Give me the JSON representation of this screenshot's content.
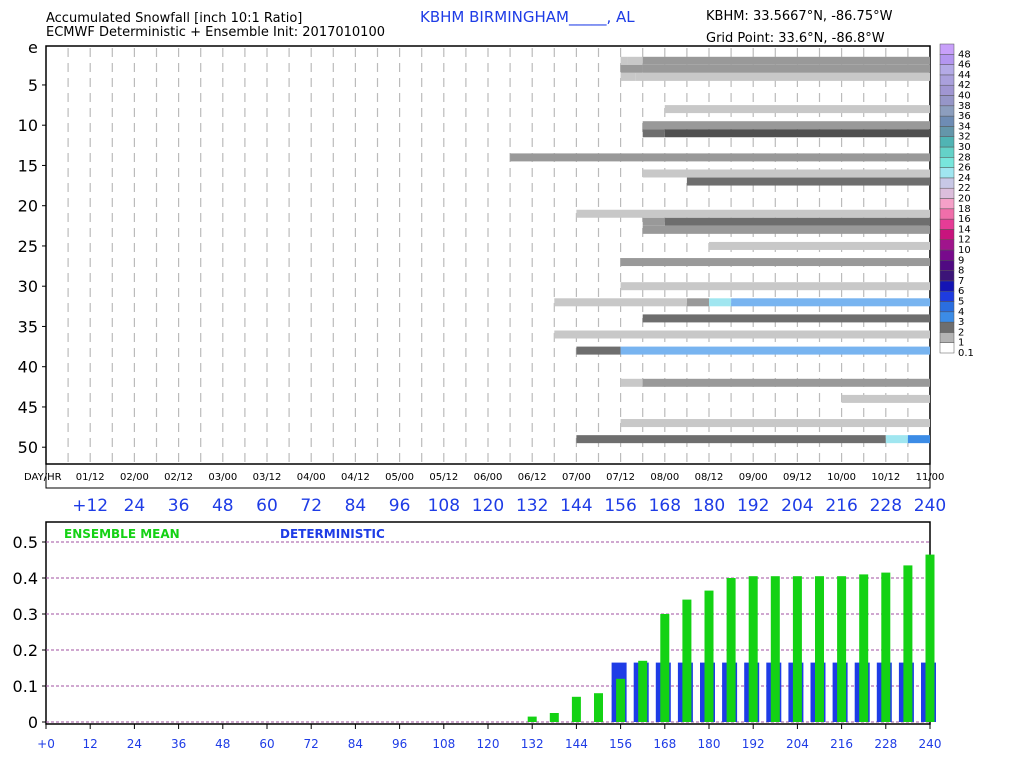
{
  "header": {
    "title_line1": "Accumulated Snowfall [inch 10:1 Ratio]",
    "title_line2": "ECMWF Deterministic + Ensemble Init: 2017010100",
    "station": "KBHM BIRMINGHAM_____, AL",
    "station_coords": "KBHM: 33.5667°N, -86.75°W",
    "grid_point": "Grid Point: 33.6°N, -86.8°W"
  },
  "chart_data": [
    {
      "type": "heatmap",
      "ylabel_top": "e",
      "y_ticks": [
        5,
        10,
        15,
        20,
        25,
        30,
        35,
        40,
        45,
        50
      ],
      "y_range": [
        0,
        52
      ],
      "x_range": [
        0,
        240
      ],
      "day_hr_label": "DAY/HR",
      "day_hr_ticks": [
        "01/12",
        "02/00",
        "02/12",
        "03/00",
        "03/12",
        "04/00",
        "04/12",
        "05/00",
        "05/12",
        "06/00",
        "06/12",
        "07/00",
        "07/12",
        "08/00",
        "08/12",
        "09/00",
        "09/12",
        "10/00",
        "10/12",
        "11/00"
      ],
      "hour_ticks": [
        "+12",
        "24",
        "36",
        "48",
        "60",
        "72",
        "84",
        "96",
        "108",
        "120",
        "132",
        "144",
        "156",
        "168",
        "180",
        "192",
        "204",
        "216",
        "228",
        "240"
      ],
      "grid": "vertical dashed",
      "legend": {
        "placement": "right",
        "levels": [
          "0.1",
          "1",
          "2",
          "3",
          "4",
          "5",
          "6",
          "7",
          "8",
          "9",
          "10",
          "12",
          "14",
          "16",
          "18",
          "20",
          "22",
          "24",
          "26",
          "28",
          "30",
          "32",
          "34",
          "36",
          "38",
          "40",
          "42",
          "44",
          "46",
          "48"
        ],
        "colors": [
          "#ffffff",
          "#b4b4b4",
          "#6e6e6e",
          "#3c8ce6",
          "#2a6ee0",
          "#1e3ce0",
          "#1414b4",
          "#3c1478",
          "#500a82",
          "#780a8c",
          "#a0148c",
          "#c8147d",
          "#e63c96",
          "#f06eaa",
          "#f5a0c8",
          "#dcbedc",
          "#c8c8e6",
          "#a0e6f0",
          "#78e6dc",
          "#64d2c8",
          "#50b4b4",
          "#6496aa",
          "#6e8cb4",
          "#8c9ebe",
          "#9696c8",
          "#a096d2",
          "#aaa0dc",
          "#b4aae6",
          "#b496f0",
          "#c8a0fa"
        ]
      },
      "series": [
        {
          "member": 2,
          "segments": [
            [
              156,
              158,
              "#c8c8c8"
            ],
            [
              158,
              162,
              "#c8c8c8"
            ],
            [
              162,
              240,
              "#999999"
            ]
          ]
        },
        {
          "member": 3,
          "segments": [
            [
              156,
              162,
              "#999999"
            ],
            [
              162,
              240,
              "#999999"
            ]
          ]
        },
        {
          "member": 4,
          "segments": [
            [
              156,
              160,
              "#c8c8c8"
            ],
            [
              160,
              240,
              "#c8c8c8"
            ]
          ]
        },
        {
          "member": 8,
          "segments": [
            [
              168,
              240,
              "#c8c8c8"
            ]
          ]
        },
        {
          "member": 10,
          "segments": [
            [
              162,
              240,
              "#999999"
            ]
          ]
        },
        {
          "member": 11,
          "segments": [
            [
              162,
              168,
              "#6e6e6e"
            ],
            [
              168,
              240,
              "#505050"
            ]
          ]
        },
        {
          "member": 14,
          "segments": [
            [
              126,
              240,
              "#999999"
            ]
          ]
        },
        {
          "member": 16,
          "segments": [
            [
              162,
              240,
              "#c8c8c8"
            ]
          ]
        },
        {
          "member": 17,
          "segments": [
            [
              174,
              240,
              "#6e6e6e"
            ]
          ]
        },
        {
          "member": 21,
          "segments": [
            [
              144,
              240,
              "#c8c8c8"
            ]
          ]
        },
        {
          "member": 22,
          "segments": [
            [
              162,
              168,
              "#999999"
            ],
            [
              168,
              240,
              "#6e6e6e"
            ]
          ]
        },
        {
          "member": 23,
          "segments": [
            [
              162,
              240,
              "#999999"
            ]
          ]
        },
        {
          "member": 25,
          "segments": [
            [
              180,
              240,
              "#c8c8c8"
            ]
          ]
        },
        {
          "member": 27,
          "segments": [
            [
              156,
              240,
              "#999999"
            ]
          ]
        },
        {
          "member": 30,
          "segments": [
            [
              156,
              240,
              "#c8c8c8"
            ]
          ]
        },
        {
          "member": 32,
          "segments": [
            [
              138,
              174,
              "#c8c8c8"
            ],
            [
              174,
              180,
              "#999999"
            ],
            [
              180,
              186,
              "#a0e6f0"
            ],
            [
              186,
              240,
              "#78b4f0"
            ]
          ]
        },
        {
          "member": 34,
          "segments": [
            [
              162,
              240,
              "#6e6e6e"
            ]
          ]
        },
        {
          "member": 36,
          "segments": [
            [
              138,
              240,
              "#c8c8c8"
            ]
          ]
        },
        {
          "member": 38,
          "segments": [
            [
              144,
              156,
              "#6e6e6e"
            ],
            [
              156,
              240,
              "#78b4f0"
            ]
          ]
        },
        {
          "member": 42,
          "segments": [
            [
              156,
              162,
              "#c8c8c8"
            ],
            [
              162,
              240,
              "#999999"
            ]
          ]
        },
        {
          "member": 44,
          "segments": [
            [
              216,
              240,
              "#c8c8c8"
            ]
          ]
        },
        {
          "member": 47,
          "segments": [
            [
              156,
              240,
              "#c8c8c8"
            ]
          ]
        },
        {
          "member": 49,
          "segments": [
            [
              144,
              228,
              "#6e6e6e"
            ],
            [
              228,
              234,
              "#a0e6f0"
            ],
            [
              234,
              240,
              "#3c8ce6"
            ]
          ]
        }
      ]
    },
    {
      "type": "bar",
      "legend_labels": [
        "ENSEMBLE MEAN",
        "DETERMINISTIC"
      ],
      "colors": {
        "ensemble": "#14d214",
        "deterministic": "#1e3ce6"
      },
      "y_ticks": [
        "0",
        "0.1",
        "0.2",
        "0.3",
        "0.4",
        "0.5"
      ],
      "ylim": [
        0,
        0.55
      ],
      "x_ticks": [
        "+0",
        "12",
        "24",
        "36",
        "48",
        "60",
        "72",
        "84",
        "96",
        "108",
        "120",
        "132",
        "144",
        "156",
        "168",
        "180",
        "192",
        "204",
        "216",
        "228",
        "240"
      ],
      "xlim": [
        0,
        240
      ],
      "grid": "horizontal dashed",
      "x": [
        132,
        138,
        144,
        150,
        156,
        162,
        168,
        174,
        180,
        186,
        192,
        198,
        204,
        210,
        216,
        222,
        228,
        234,
        240
      ],
      "series": [
        {
          "name": "ENSEMBLE MEAN",
          "values": [
            0.015,
            0.025,
            0.07,
            0.08,
            0.12,
            0.17,
            0.3,
            0.34,
            0.365,
            0.4,
            0.405,
            0.405,
            0.405,
            0.405,
            0.405,
            0.41,
            0.415,
            0.435,
            0.465
          ]
        },
        {
          "name": "DETERMINISTIC",
          "values": [
            0,
            0,
            0,
            0,
            0.165,
            0.165,
            0.165,
            0.165,
            0.165,
            0.165,
            0.165,
            0.165,
            0.165,
            0.165,
            0.165,
            0.165,
            0.165,
            0.165,
            0.165
          ]
        }
      ]
    }
  ]
}
